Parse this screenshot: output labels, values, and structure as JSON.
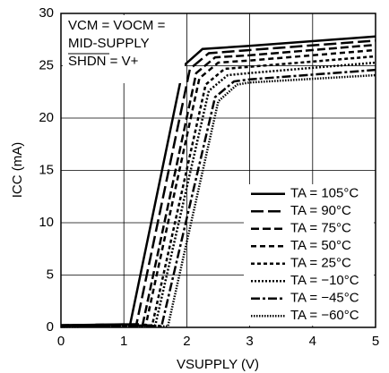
{
  "chart_data": {
    "type": "line",
    "x_label": "VSUPPLY (V)",
    "y_label": "ICC (mA)",
    "annotations": [
      "VCM = VOCM =",
      "MID-SUPPLY",
      "SHDN = V+"
    ],
    "xlim": [
      0,
      5
    ],
    "xticks": [
      0,
      1,
      2,
      3,
      4,
      5
    ],
    "ylim": [
      0,
      30
    ],
    "yticks": [
      0,
      5,
      10,
      15,
      20,
      25,
      30
    ],
    "grid": true,
    "legend": "lower right",
    "series": [
      {
        "name": "TA = 105°C",
        "color": "#000000",
        "dash": "",
        "x": [
          0,
          1.1,
          1.95,
          2.25,
          3,
          5
        ],
        "values": [
          0.2,
          0.3,
          25,
          26.6,
          26.9,
          27.8
        ]
      },
      {
        "name": "TA = 90°C",
        "color": "#000000",
        "dash": "14 5",
        "x": [
          0,
          1.2,
          2.05,
          2.35,
          3,
          5
        ],
        "values": [
          0.2,
          0.3,
          24.7,
          26.2,
          26.5,
          27.4
        ]
      },
      {
        "name": "TA = 75°C",
        "color": "#000000",
        "dash": "9 4",
        "x": [
          0,
          1.3,
          2.15,
          2.45,
          3,
          5
        ],
        "values": [
          0.2,
          0.3,
          24.3,
          25.8,
          26,
          27
        ]
      },
      {
        "name": "TA = 50°C",
        "color": "#000000",
        "dash": "6 4",
        "x": [
          0,
          1.35,
          2.2,
          2.5,
          3,
          5
        ],
        "values": [
          0.15,
          0.25,
          23.8,
          25.3,
          25.5,
          26.5
        ]
      },
      {
        "name": "TA = 25°C",
        "color": "#000000",
        "dash": "4 3",
        "x": [
          0,
          1.45,
          2.3,
          2.6,
          3,
          5
        ],
        "values": [
          0.1,
          0.2,
          23.2,
          24.7,
          24.9,
          25.9
        ]
      },
      {
        "name": "TA = −10°C",
        "color": "#000000",
        "dash": "2 2",
        "x": [
          0,
          1.5,
          2.35,
          2.65,
          3,
          5
        ],
        "values": [
          0.1,
          0.2,
          22.6,
          24.1,
          24.3,
          25.3
        ]
      },
      {
        "name": "TA = −45°C",
        "color": "#000000",
        "dash": "10 3 3 3",
        "x": [
          0,
          1.6,
          2.45,
          2.75,
          3,
          5
        ],
        "values": [
          0.05,
          0.15,
          22,
          23.5,
          23.7,
          24.6
        ]
      },
      {
        "name": "TA = −60°C",
        "color": "#000000",
        "dash": "1.5 1.5",
        "x": [
          0,
          1.7,
          2.5,
          2.8,
          3,
          5
        ],
        "values": [
          0.05,
          0.1,
          21.6,
          23.2,
          23.4,
          24.1
        ]
      }
    ]
  }
}
